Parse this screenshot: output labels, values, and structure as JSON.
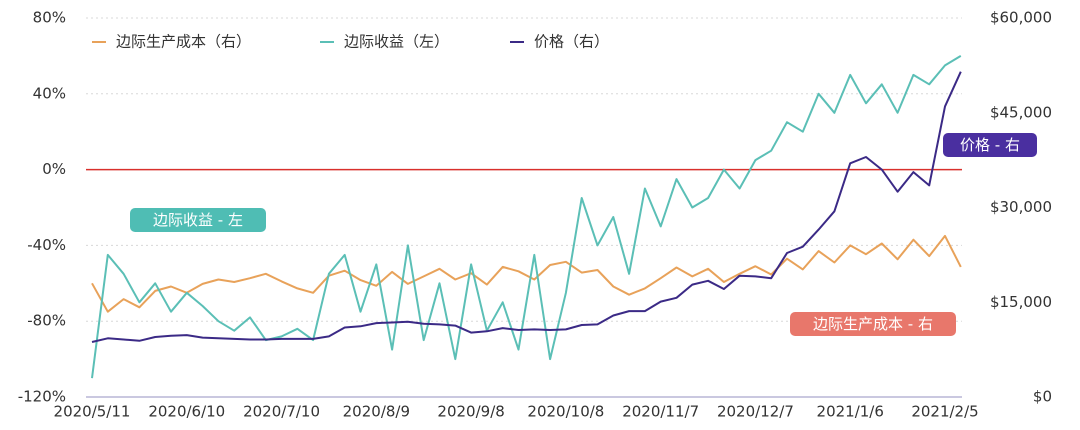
{
  "chart_data": {
    "type": "line",
    "categories": [
      "2020/5/11",
      null,
      null,
      null,
      null,
      null,
      "2020/6/10",
      null,
      null,
      null,
      null,
      null,
      "2020/7/10",
      null,
      null,
      null,
      null,
      null,
      "2020/8/9",
      null,
      null,
      null,
      null,
      null,
      "2020/9/8",
      null,
      null,
      null,
      null,
      null,
      "2020/10/8",
      null,
      null,
      null,
      null,
      null,
      "2020/11/7",
      null,
      null,
      null,
      null,
      null,
      "2020/12/7",
      null,
      null,
      null,
      null,
      null,
      "2021/1/6",
      null,
      null,
      null,
      null,
      null,
      "2021/2/5",
      null
    ],
    "series": [
      {
        "name": "边际生产成本（右）",
        "color": "#e8a25a",
        "axis": "y2",
        "values": [
          18000,
          13500,
          15500,
          14200,
          16800,
          17500,
          16500,
          17900,
          18600,
          18200,
          18800,
          19500,
          18300,
          17200,
          16500,
          19200,
          20000,
          18500,
          17600,
          19800,
          17900,
          19100,
          20300,
          18600,
          19600,
          17800,
          20600,
          19900,
          18600,
          20900,
          21400,
          19700,
          20100,
          17500,
          16200,
          17200,
          18800,
          20500,
          19100,
          20300,
          18200,
          19500,
          20700,
          19400,
          21900,
          20200,
          23100,
          21300,
          24000,
          22600,
          24300,
          21800,
          24900,
          22300,
          25500,
          20600
        ]
      },
      {
        "name": "边际收益（左）",
        "color": "#5bbfb6",
        "values": [
          -110,
          -45,
          -55,
          -70,
          -60,
          -75,
          -65,
          -72,
          -80,
          -85,
          -78,
          -90,
          -88,
          -84,
          -90,
          -55,
          -45,
          -75,
          -50,
          -95,
          -40,
          -90,
          -60,
          -100,
          -50,
          -85,
          -70,
          -95,
          -45,
          -100,
          -65,
          -15,
          -40,
          -25,
          -55,
          -10,
          -30,
          -5,
          -20,
          -15,
          0,
          -10,
          5,
          10,
          25,
          20,
          40,
          30,
          50,
          35,
          45,
          30,
          50,
          45,
          55,
          60
        ]
      },
      {
        "name": "价格（右）",
        "color": "#3b2a86",
        "axis": "y2",
        "values": [
          8700,
          9300,
          9100,
          8900,
          9500,
          9700,
          9800,
          9400,
          9300,
          9200,
          9100,
          9100,
          9200,
          9200,
          9200,
          9600,
          11000,
          11200,
          11700,
          11800,
          11900,
          11600,
          11500,
          11300,
          10200,
          10400,
          10900,
          10600,
          10700,
          10600,
          10700,
          11400,
          11500,
          12900,
          13600,
          13600,
          15100,
          15700,
          17800,
          18400,
          17100,
          19200,
          19100,
          18800,
          22800,
          23800,
          26500,
          29400,
          37000,
          38000,
          36000,
          32500,
          35600,
          33500,
          46000,
          51500
        ]
      }
    ],
    "ylim": [
      -120,
      80
    ],
    "yticks": [
      {
        "value": -120,
        "label": "-120%"
      },
      {
        "value": -80,
        "label": "-80%"
      },
      {
        "value": -40,
        "label": "-40%"
      },
      {
        "value": 0,
        "label": "0%"
      },
      {
        "value": 40,
        "label": "40%"
      },
      {
        "value": 80,
        "label": "80%"
      }
    ],
    "y2lim": [
      0,
      60000
    ],
    "y2ticks": [
      {
        "value": 0,
        "label": "$0"
      },
      {
        "value": 15000,
        "label": "$15,000"
      },
      {
        "value": 30000,
        "label": "$30,000"
      },
      {
        "value": 45000,
        "label": "$45,000"
      },
      {
        "value": 60000,
        "label": "$60,000"
      }
    ],
    "grid": true,
    "zero_line_color": "#d9302c",
    "annotations": [
      {
        "text": "边际收益 - 左",
        "color": "#4fbdb4"
      },
      {
        "text": "价格 - 右",
        "color": "#4a2fa0"
      },
      {
        "text": "边际生产成本 - 右",
        "color": "#e8776b"
      }
    ]
  }
}
